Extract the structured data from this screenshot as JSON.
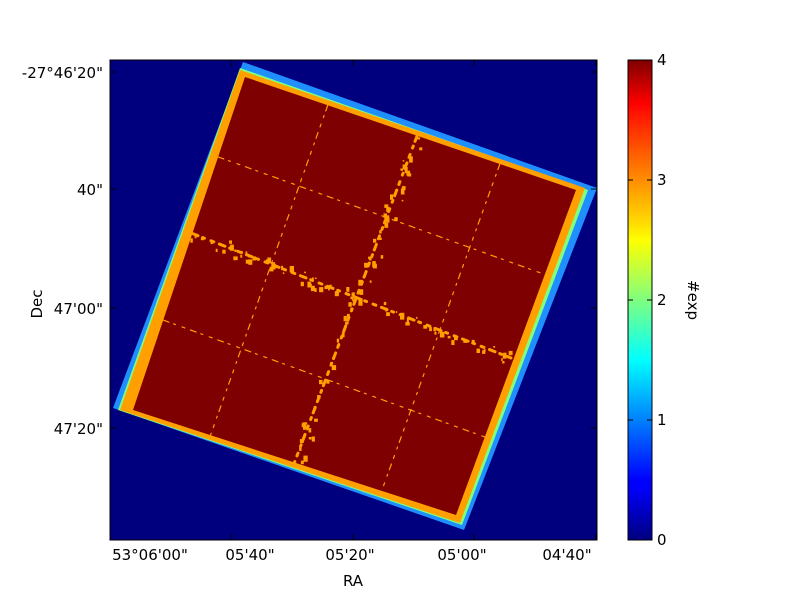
{
  "chart_data": {
    "type": "heatmap",
    "title": "",
    "xlabel": "RA",
    "ylabel": "Dec",
    "x_ticks": [
      "53°06'00\"",
      "05'40\"",
      "05'20\"",
      "05'00\"",
      "04'40\""
    ],
    "y_ticks": [
      "-27°46'20\"",
      "40\"",
      "47'00\"",
      "47'20\""
    ],
    "colorbar": {
      "label": "#exp",
      "range": [
        0,
        4
      ],
      "ticks": [
        "0",
        "1",
        "2",
        "3",
        "4"
      ],
      "colormap": "jet"
    },
    "exposure_levels": {
      "background": 0,
      "outer_rim": 1,
      "edge_band": 3,
      "interior": 4,
      "gaps": 3
    },
    "colors": {
      "level_0": "#00007f",
      "level_1": "#1f8fff",
      "level_2": "#7fff7f",
      "level_3": "#ffa000",
      "level_4": "#7f0000"
    }
  }
}
